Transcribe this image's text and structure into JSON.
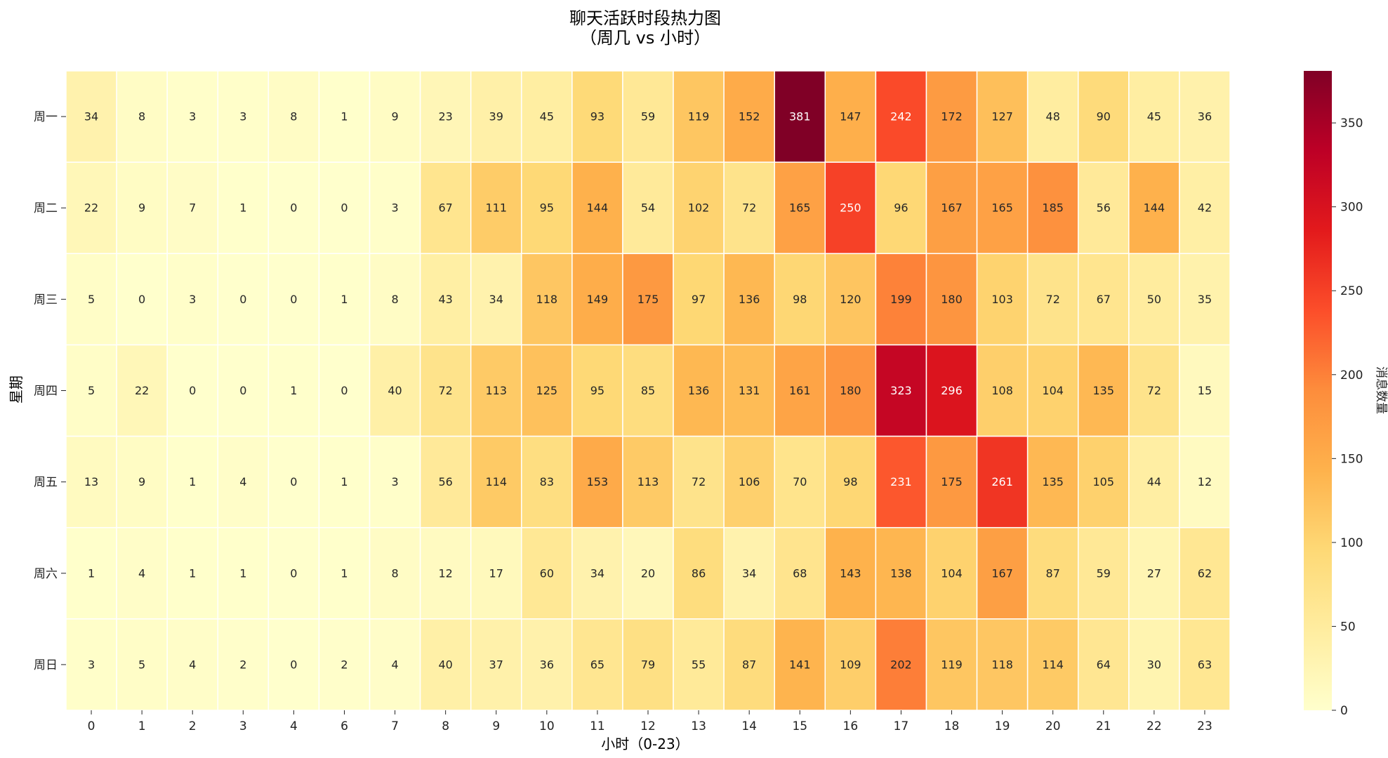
{
  "chart_data": {
    "type": "heatmap",
    "title_line1": "聊天活跃时段热力图",
    "title_line2": "（周几 vs 小时）",
    "xlabel": "小时（0-23）",
    "ylabel": "星期",
    "x": [
      "0",
      "1",
      "2",
      "3",
      "4",
      "6",
      "7",
      "8",
      "9",
      "10",
      "11",
      "12",
      "13",
      "14",
      "15",
      "16",
      "17",
      "18",
      "19",
      "20",
      "21",
      "22",
      "23"
    ],
    "y": [
      "周一",
      "周二",
      "周三",
      "周四",
      "周五",
      "周六",
      "周日"
    ],
    "values": [
      [
        34,
        8,
        3,
        3,
        8,
        1,
        9,
        23,
        39,
        45,
        93,
        59,
        119,
        152,
        381,
        147,
        242,
        172,
        127,
        48,
        90,
        45,
        36
      ],
      [
        22,
        9,
        7,
        1,
        0,
        0,
        3,
        67,
        111,
        95,
        144,
        54,
        102,
        72,
        165,
        250,
        96,
        167,
        165,
        185,
        56,
        144,
        42
      ],
      [
        5,
        0,
        3,
        0,
        0,
        1,
        8,
        43,
        34,
        118,
        149,
        175,
        97,
        136,
        98,
        120,
        199,
        180,
        103,
        72,
        67,
        50,
        35
      ],
      [
        5,
        22,
        0,
        0,
        1,
        0,
        40,
        72,
        113,
        125,
        95,
        85,
        136,
        131,
        161,
        180,
        323,
        296,
        108,
        104,
        135,
        72,
        15
      ],
      [
        13,
        9,
        1,
        4,
        0,
        1,
        3,
        56,
        114,
        83,
        153,
        113,
        72,
        106,
        70,
        98,
        231,
        175,
        261,
        135,
        105,
        44,
        12
      ],
      [
        1,
        4,
        1,
        1,
        0,
        1,
        8,
        12,
        17,
        60,
        34,
        20,
        86,
        34,
        68,
        143,
        138,
        104,
        167,
        87,
        59,
        27,
        62
      ],
      [
        3,
        5,
        4,
        2,
        0,
        2,
        4,
        40,
        37,
        36,
        65,
        79,
        55,
        87,
        141,
        109,
        202,
        119,
        118,
        114,
        64,
        30,
        63
      ]
    ],
    "colorbar": {
      "label": "消息数量",
      "colormap": "YlOrRd",
      "range": [
        0,
        381
      ],
      "ticks": [
        "0",
        "50",
        "100",
        "150",
        "200",
        "250",
        "300",
        "350"
      ]
    }
  }
}
